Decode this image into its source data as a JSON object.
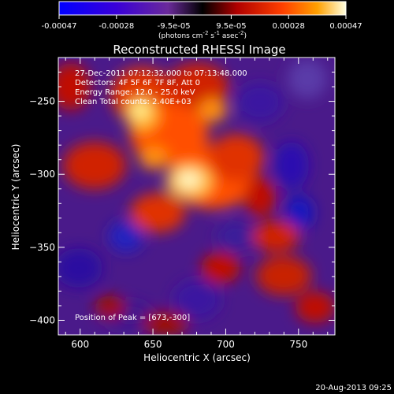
{
  "colorbar": {
    "ticks": [
      "-0.00047",
      "-0.00028",
      "-9.5e-05",
      "9.5e-05",
      "0.00028",
      "0.00047"
    ],
    "unit_label": "(photons cm",
    "unit_exp1": "-2",
    "unit_mid": " s",
    "unit_exp2": "-1",
    "unit_end": " asec",
    "unit_exp3": "-2",
    "unit_close": ")"
  },
  "image": {
    "title": "Reconstructed RHESSI Image",
    "info_lines": [
      "27-Dec-2011 07:12:32.000 to 07:13:48.000",
      "Detectors: 4F 5F 6F 7F 8F, Att 0",
      "Energy Range: 12.0 - 25.0 keV",
      "Clean     Total counts: 2.40E+03"
    ],
    "peak_label": "Position of Peak = [673,-300]"
  },
  "axes": {
    "xlabel": "Heliocentric X (arcsec)",
    "ylabel": "Heliocentric Y (arcsec)",
    "x_ticks": [
      600,
      650,
      700,
      750
    ],
    "y_ticks": [
      -250,
      -300,
      -350,
      -400
    ],
    "x_range": [
      585,
      775
    ],
    "y_range": [
      -410,
      -220
    ]
  },
  "footer": {
    "timestamp": "20-Aug-2013 09:25"
  }
}
